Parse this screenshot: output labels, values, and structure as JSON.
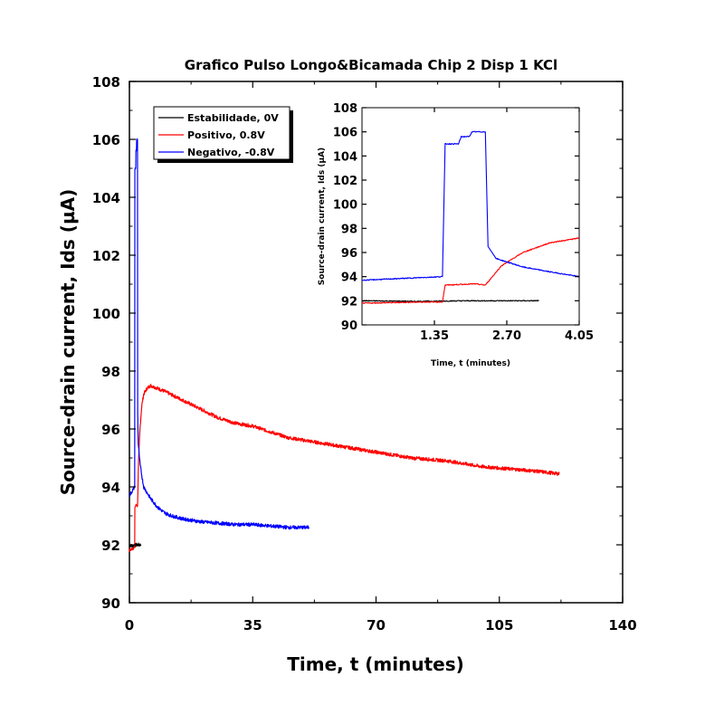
{
  "chart_data": {
    "type": "line",
    "title": "Grafico Pulso Longo&Bicamada Chip 2 Disp 1 KCl",
    "xlabel": "Time, t (minutes)",
    "ylabel": "Source-drain current, Ids (µA)",
    "xlim": [
      0,
      140
    ],
    "ylim": [
      90,
      108
    ],
    "x_ticks": [
      "0",
      "35",
      "70",
      "105",
      "140"
    ],
    "y_ticks": [
      "90",
      "92",
      "94",
      "96",
      "98",
      "100",
      "102",
      "104",
      "106",
      "108"
    ],
    "legend_position": "top-left",
    "series": [
      {
        "name": "Estabilidade, 0V",
        "color": "#000000",
        "points": [
          [
            0,
            92.0
          ],
          [
            1,
            91.95
          ],
          [
            2,
            92.0
          ],
          [
            2.9,
            92.0
          ],
          [
            3.3,
            92.0
          ]
        ]
      },
      {
        "name": "Positivo, 0.8V",
        "color": "#ff0000",
        "points": [
          [
            0,
            91.8
          ],
          [
            1.2,
            91.9
          ],
          [
            1.5,
            91.9
          ],
          [
            1.55,
            93.3
          ],
          [
            2.1,
            93.4
          ],
          [
            2.3,
            93.3
          ],
          [
            2.6,
            94.9
          ],
          [
            3.0,
            96.0
          ],
          [
            3.5,
            96.8
          ],
          [
            4.05,
            97.2
          ],
          [
            5,
            97.4
          ],
          [
            6,
            97.5
          ],
          [
            10,
            97.3
          ],
          [
            15,
            97.0
          ],
          [
            20,
            96.7
          ],
          [
            25,
            96.4
          ],
          [
            30,
            96.2
          ],
          [
            35,
            96.1
          ],
          [
            40,
            95.9
          ],
          [
            45,
            95.7
          ],
          [
            50,
            95.6
          ],
          [
            55,
            95.5
          ],
          [
            60,
            95.4
          ],
          [
            65,
            95.3
          ],
          [
            70,
            95.2
          ],
          [
            75,
            95.1
          ],
          [
            80,
            95.0
          ],
          [
            85,
            94.95
          ],
          [
            90,
            94.9
          ],
          [
            95,
            94.8
          ],
          [
            100,
            94.7
          ],
          [
            105,
            94.65
          ],
          [
            110,
            94.6
          ],
          [
            115,
            94.55
          ],
          [
            122,
            94.45
          ]
        ]
      },
      {
        "name": "Negativo, -0.8V",
        "color": "#0000ff",
        "points": [
          [
            0,
            93.7
          ],
          [
            1.0,
            93.9
          ],
          [
            1.5,
            94.0
          ],
          [
            1.55,
            105.0
          ],
          [
            1.8,
            105.0
          ],
          [
            1.85,
            105.6
          ],
          [
            2.0,
            105.6
          ],
          [
            2.05,
            106.0
          ],
          [
            2.3,
            106.0
          ],
          [
            2.35,
            96.5
          ],
          [
            2.5,
            95.5
          ],
          [
            3.0,
            94.8
          ],
          [
            3.5,
            94.4
          ],
          [
            4.05,
            94.0
          ],
          [
            5,
            93.8
          ],
          [
            6,
            93.6
          ],
          [
            8,
            93.3
          ],
          [
            10,
            93.1
          ],
          [
            12,
            93.0
          ],
          [
            15,
            92.9
          ],
          [
            20,
            92.8
          ],
          [
            25,
            92.75
          ],
          [
            30,
            92.7
          ],
          [
            35,
            92.7
          ],
          [
            40,
            92.65
          ],
          [
            45,
            92.6
          ],
          [
            51,
            92.6
          ]
        ]
      }
    ],
    "inset": {
      "xlabel": "Time, t (minutes)",
      "ylabel": "Source-drain current, Ids (µA)",
      "xlim": [
        0,
        4.05
      ],
      "ylim": [
        90,
        108
      ],
      "x_ticks": [
        "1.35",
        "2.70",
        "4.05"
      ],
      "y_ticks": [
        "90",
        "92",
        "94",
        "96",
        "98",
        "100",
        "102",
        "104",
        "106",
        "108"
      ]
    }
  }
}
